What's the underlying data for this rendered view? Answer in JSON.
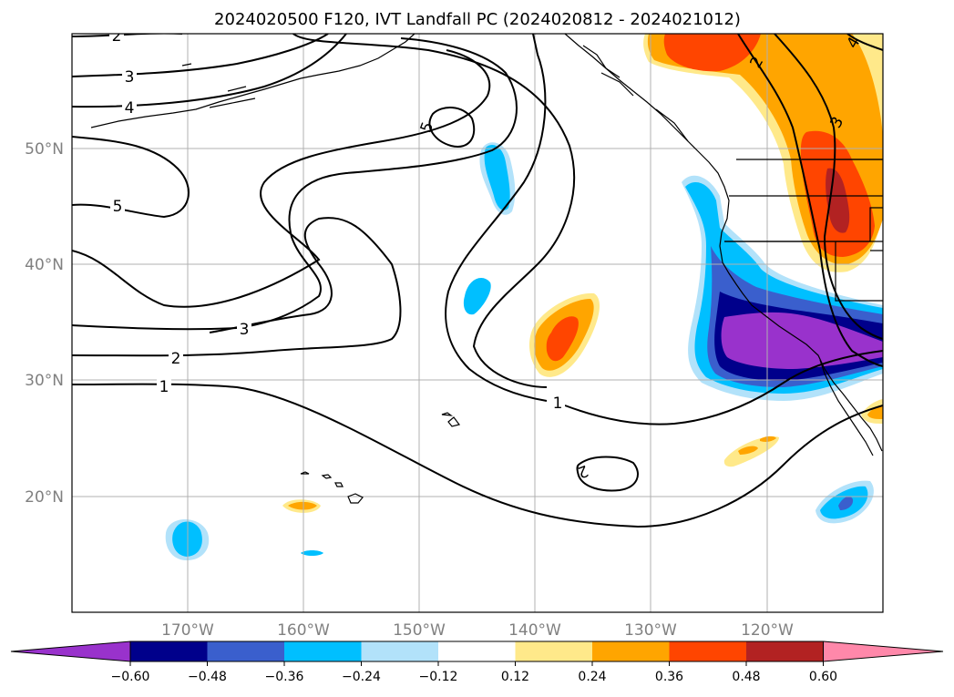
{
  "title": "2024020500 F120, IVT Landfall PC (2024020812 - 2024021012)",
  "lat_ticks": [
    "50°N",
    "40°N",
    "30°N",
    "20°N"
  ],
  "lon_ticks": [
    "170°W",
    "160°W",
    "150°W",
    "140°W",
    "130°W",
    "120°W"
  ],
  "colorbar": {
    "ticks": [
      "−0.60",
      "−0.48",
      "−0.36",
      "−0.24",
      "−0.12",
      "0.12",
      "0.24",
      "0.36",
      "0.48",
      "0.60"
    ],
    "colors": [
      "#9932cc",
      "#00008b",
      "#3a5fcd",
      "#00bfff",
      "#b2e2fa",
      "#ffffff",
      "#ffe98a",
      "#ffa500",
      "#ff4500",
      "#b22222",
      "#ff88aa"
    ]
  },
  "contour_labels": [
    "2",
    "3",
    "4",
    "5",
    "5",
    "3",
    "2",
    "1",
    "1",
    "2",
    "2",
    "3",
    "4"
  ]
}
